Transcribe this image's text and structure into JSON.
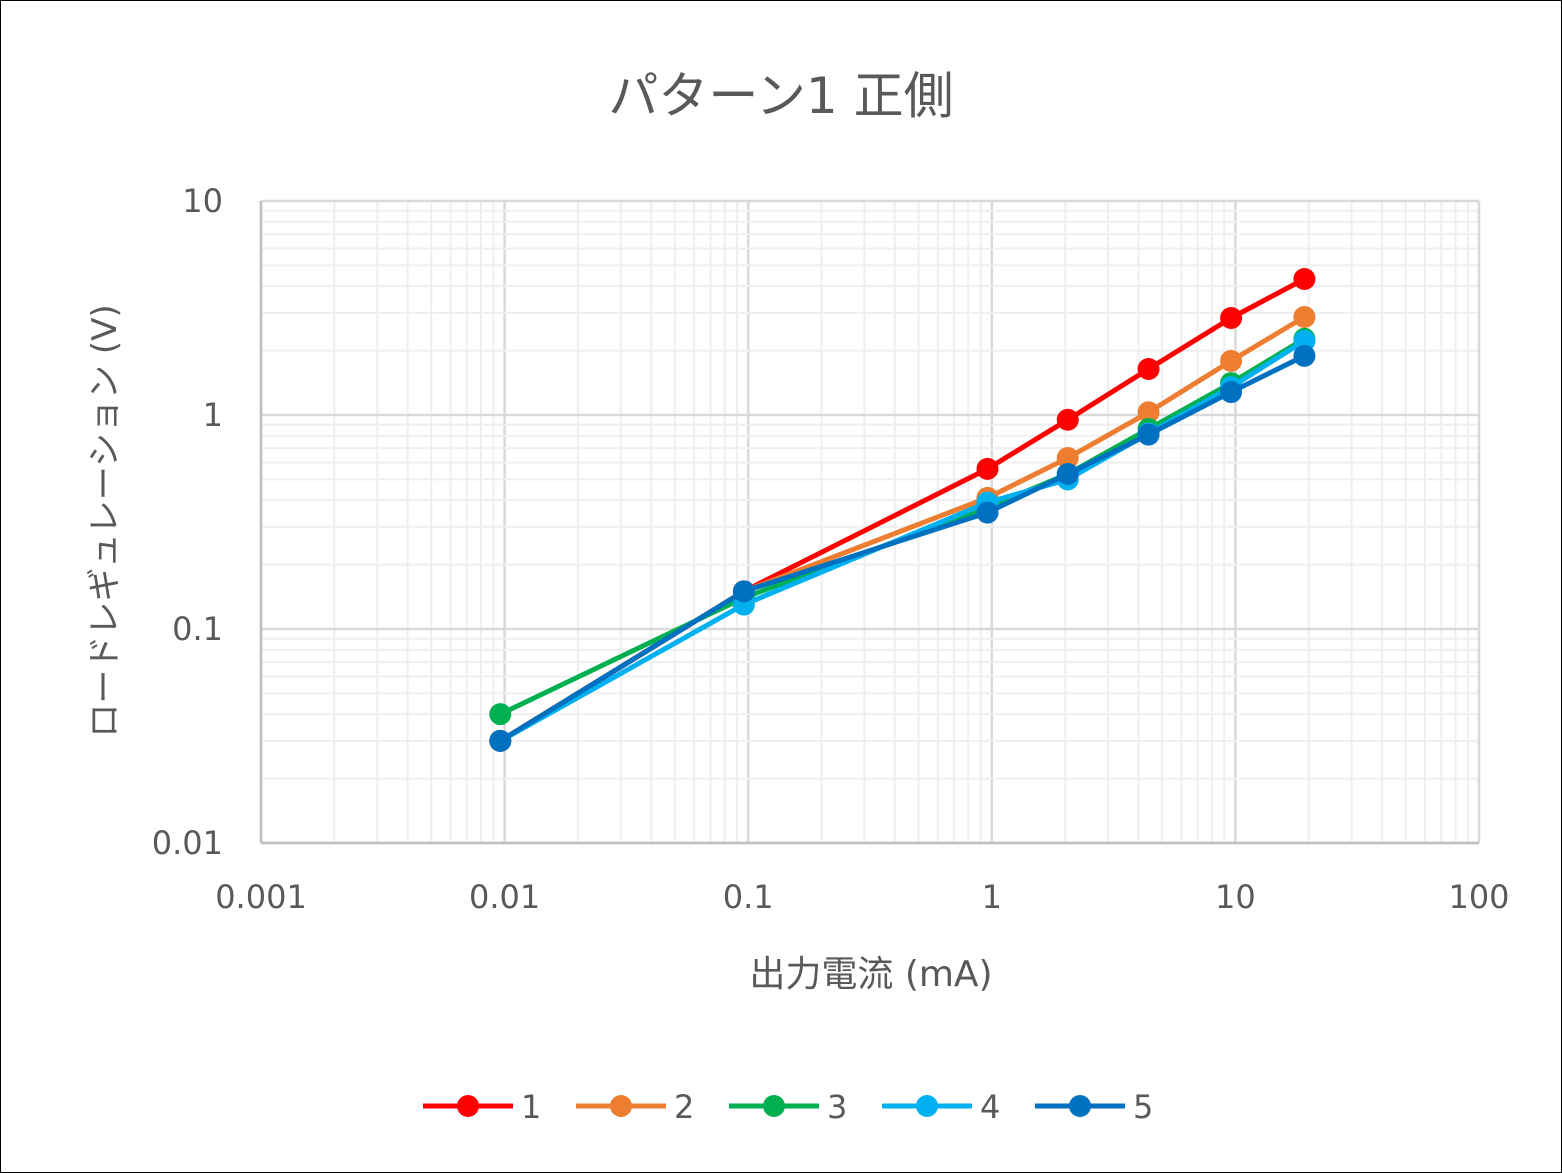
{
  "chart_data": {
    "type": "line",
    "title": "パターン1 正側",
    "xlabel": "出力電流 (mA)",
    "ylabel": "ロードレギュレーション (V)",
    "xscale": "log",
    "yscale": "log",
    "xlim": [
      0.001,
      100
    ],
    "ylim": [
      0.01,
      10
    ],
    "xticks": [
      "0.001",
      "0.01",
      "0.1",
      "1",
      "10",
      "100"
    ],
    "yticks": [
      "0.01",
      "0.1",
      "1",
      "10"
    ],
    "grid": true,
    "legend": "bottom",
    "x": [
      0.0096,
      0.096,
      0.96,
      2.05,
      4.4,
      9.6,
      19.2
    ],
    "series": [
      {
        "name": "1",
        "color": "#ff0000",
        "values": [
          0.03,
          0.15,
          0.56,
          0.95,
          1.64,
          2.84,
          4.32
        ]
      },
      {
        "name": "2",
        "color": "#ed7d31",
        "values": [
          0.03,
          0.15,
          0.41,
          0.63,
          1.03,
          1.79,
          2.87
        ]
      },
      {
        "name": "3",
        "color": "#00b050",
        "values": [
          0.04,
          0.14,
          0.37,
          0.53,
          0.86,
          1.41,
          2.27
        ]
      },
      {
        "name": "4",
        "color": "#00b0f0",
        "values": [
          0.03,
          0.13,
          0.39,
          0.5,
          0.82,
          1.35,
          2.22
        ]
      },
      {
        "name": "5",
        "color": "#0070c0",
        "values": [
          0.03,
          0.15,
          0.35,
          0.53,
          0.81,
          1.28,
          1.89
        ]
      }
    ]
  }
}
